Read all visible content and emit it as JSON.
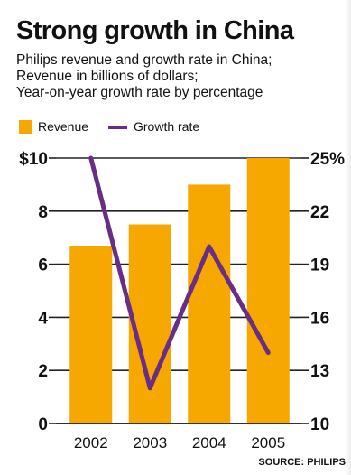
{
  "chart_data": {
    "type": "bar",
    "title": "Strong growth in China",
    "subtitle": [
      "Philips revenue and growth rate in China;",
      "Revenue in billions of dollars;",
      "Year-on-year growth rate by percentage"
    ],
    "categories": [
      "2002",
      "2003",
      "2004",
      "2005"
    ],
    "series": [
      {
        "name": "Revenue",
        "type": "bar",
        "axis": "left",
        "values": [
          6.7,
          7.5,
          9.0,
          10.0
        ],
        "color": "#f7a800"
      },
      {
        "name": "Growth rate",
        "type": "line",
        "axis": "right",
        "values": [
          25,
          12,
          20,
          14
        ],
        "color": "#6a2d86"
      }
    ],
    "y_left": {
      "ylim": [
        0,
        10
      ],
      "ticks": [
        0,
        2,
        4,
        6,
        8,
        10
      ],
      "tick_labels": [
        "0",
        "2",
        "4",
        "6",
        "8",
        "$10"
      ]
    },
    "y_right": {
      "ylim": [
        10,
        25
      ],
      "ticks": [
        10,
        13,
        16,
        19,
        22,
        25
      ],
      "tick_labels": [
        "10",
        "13",
        "16",
        "19",
        "22",
        "25%"
      ]
    },
    "grid": true,
    "legend": "top-left",
    "source": "SOURCE: PHILIPS"
  }
}
